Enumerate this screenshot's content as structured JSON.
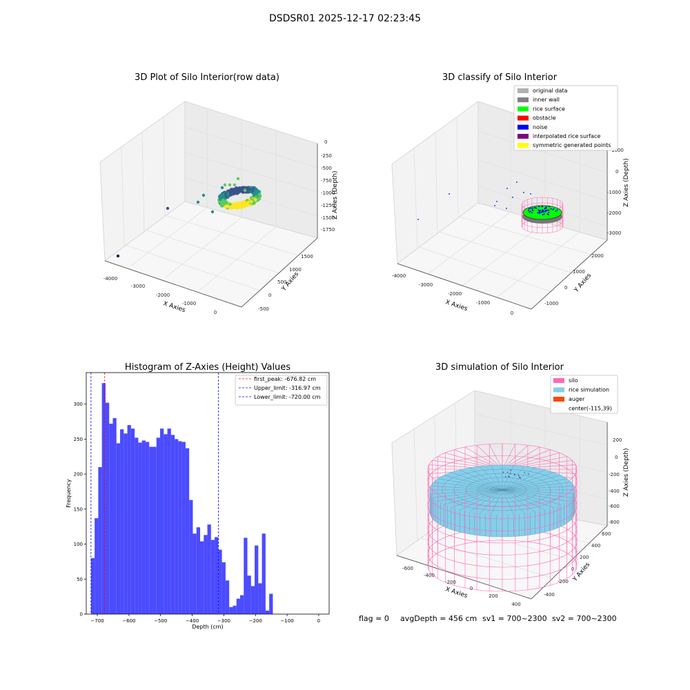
{
  "figure": {
    "suptitle": "DSDSR01 2025-12-17 02:23:45",
    "footer": {
      "flag": "flag = 0",
      "avg": "avgDepth = 456 cm",
      "sv1": "sv1 = 700~2300",
      "sv2": "sv2 = 700~2300"
    }
  },
  "chart_data": [
    {
      "type": "scatter3d",
      "title": "3D Plot of Silo Interior(row data)",
      "xlabel": "X Axies",
      "ylabel": "Y Axies",
      "zlabel": "Z Axies (Depth)",
      "xticks": [
        "-4000",
        "-3000",
        "-2000",
        "-1000",
        "0"
      ],
      "yticks": [
        "-500",
        "0",
        "500",
        "1000",
        "1500"
      ],
      "zticks": [
        "0",
        "-250",
        "-500",
        "-750",
        "-1000",
        "-1250",
        "-1500",
        "-1750"
      ],
      "colormap": [
        "#440154",
        "#3b528b",
        "#21918c",
        "#5ec962",
        "#fde725"
      ]
    },
    {
      "type": "scatter3d",
      "title": "3D classify of Silo Interior",
      "xlabel": "X Axies",
      "ylabel": "Y Axies",
      "zlabel": "Z Axies (Depth)",
      "xticks": [
        "-4000",
        "-3000",
        "-2000",
        "-1000",
        "0"
      ],
      "yticks": [
        "-1000",
        "0",
        "1000",
        "2000"
      ],
      "zticks": [
        "1000",
        "0",
        "-1000",
        "-2000",
        "-3000"
      ],
      "legend": [
        {
          "label": "original data",
          "color": "#b0b0b0"
        },
        {
          "label": "inner wall",
          "color": "#808080"
        },
        {
          "label": "rice surface",
          "color": "#00ff00"
        },
        {
          "label": "obstacle",
          "color": "#ff0000"
        },
        {
          "label": "noise",
          "color": "#0000ff"
        },
        {
          "label": "interpolated rice surface",
          "color": "#800080"
        },
        {
          "label": "symmetric generated points",
          "color": "#ffff00"
        }
      ],
      "legend_position": "top-right"
    },
    {
      "type": "bar",
      "title": "Histogram of Z-Axies (Height) Values",
      "xlabel": "Depth (cm)",
      "ylabel": "Frequency",
      "xlim": [
        -735,
        33
      ],
      "ylim": [
        0,
        345
      ],
      "xticks": [
        -700,
        -600,
        -500,
        -400,
        -300,
        -200,
        -100,
        0
      ],
      "yticks": [
        0,
        50,
        100,
        150,
        200,
        250,
        300
      ],
      "bin_width": 11.5,
      "bin_start": -720,
      "values": [
        80,
        137,
        210,
        330,
        302,
        272,
        280,
        244,
        264,
        258,
        270,
        265,
        252,
        245,
        248,
        246,
        239,
        239,
        252,
        265,
        257,
        265,
        256,
        250,
        247,
        246,
        237,
        163,
        115,
        124,
        104,
        113,
        128,
        106,
        110,
        92,
        74,
        48,
        10,
        12,
        22,
        27,
        109,
        55,
        40,
        98,
        44,
        115,
        5,
        29
      ],
      "bar_color": "#4b4bff",
      "vlines": [
        {
          "label": "first_peak: -676.82 cm",
          "x": -676.82,
          "color": "#ff0000"
        },
        {
          "label": "Upper_limit: -316.97 cm",
          "x": -316.97,
          "color": "#0000ff"
        },
        {
          "label": "Lower_limit: -720.00 cm",
          "x": -720.0,
          "color": "#0000ff"
        }
      ],
      "legend_position": "top-right"
    },
    {
      "type": "surface3d",
      "title": "3D simulation of Silo Interior",
      "xlabel": "X Axies",
      "ylabel": "Y Axies",
      "zlabel": "Z Axies (Depth)",
      "xticks": [
        "-600",
        "-400",
        "-200",
        "0",
        "200",
        "400"
      ],
      "yticks": [
        "-400",
        "-200",
        "0",
        "200",
        "400",
        "600"
      ],
      "zticks": [
        "200",
        "0",
        "-200",
        "-400",
        "-600",
        "-800"
      ],
      "legend": [
        {
          "label": "silo",
          "color": "#ff69b4"
        },
        {
          "label": "rice simulation",
          "color": "#87ceeb"
        },
        {
          "label": "auger",
          "color": "#ff4500"
        },
        {
          "label": "center(-115,39)",
          "color": ""
        }
      ],
      "legend_position": "top-right"
    }
  ]
}
